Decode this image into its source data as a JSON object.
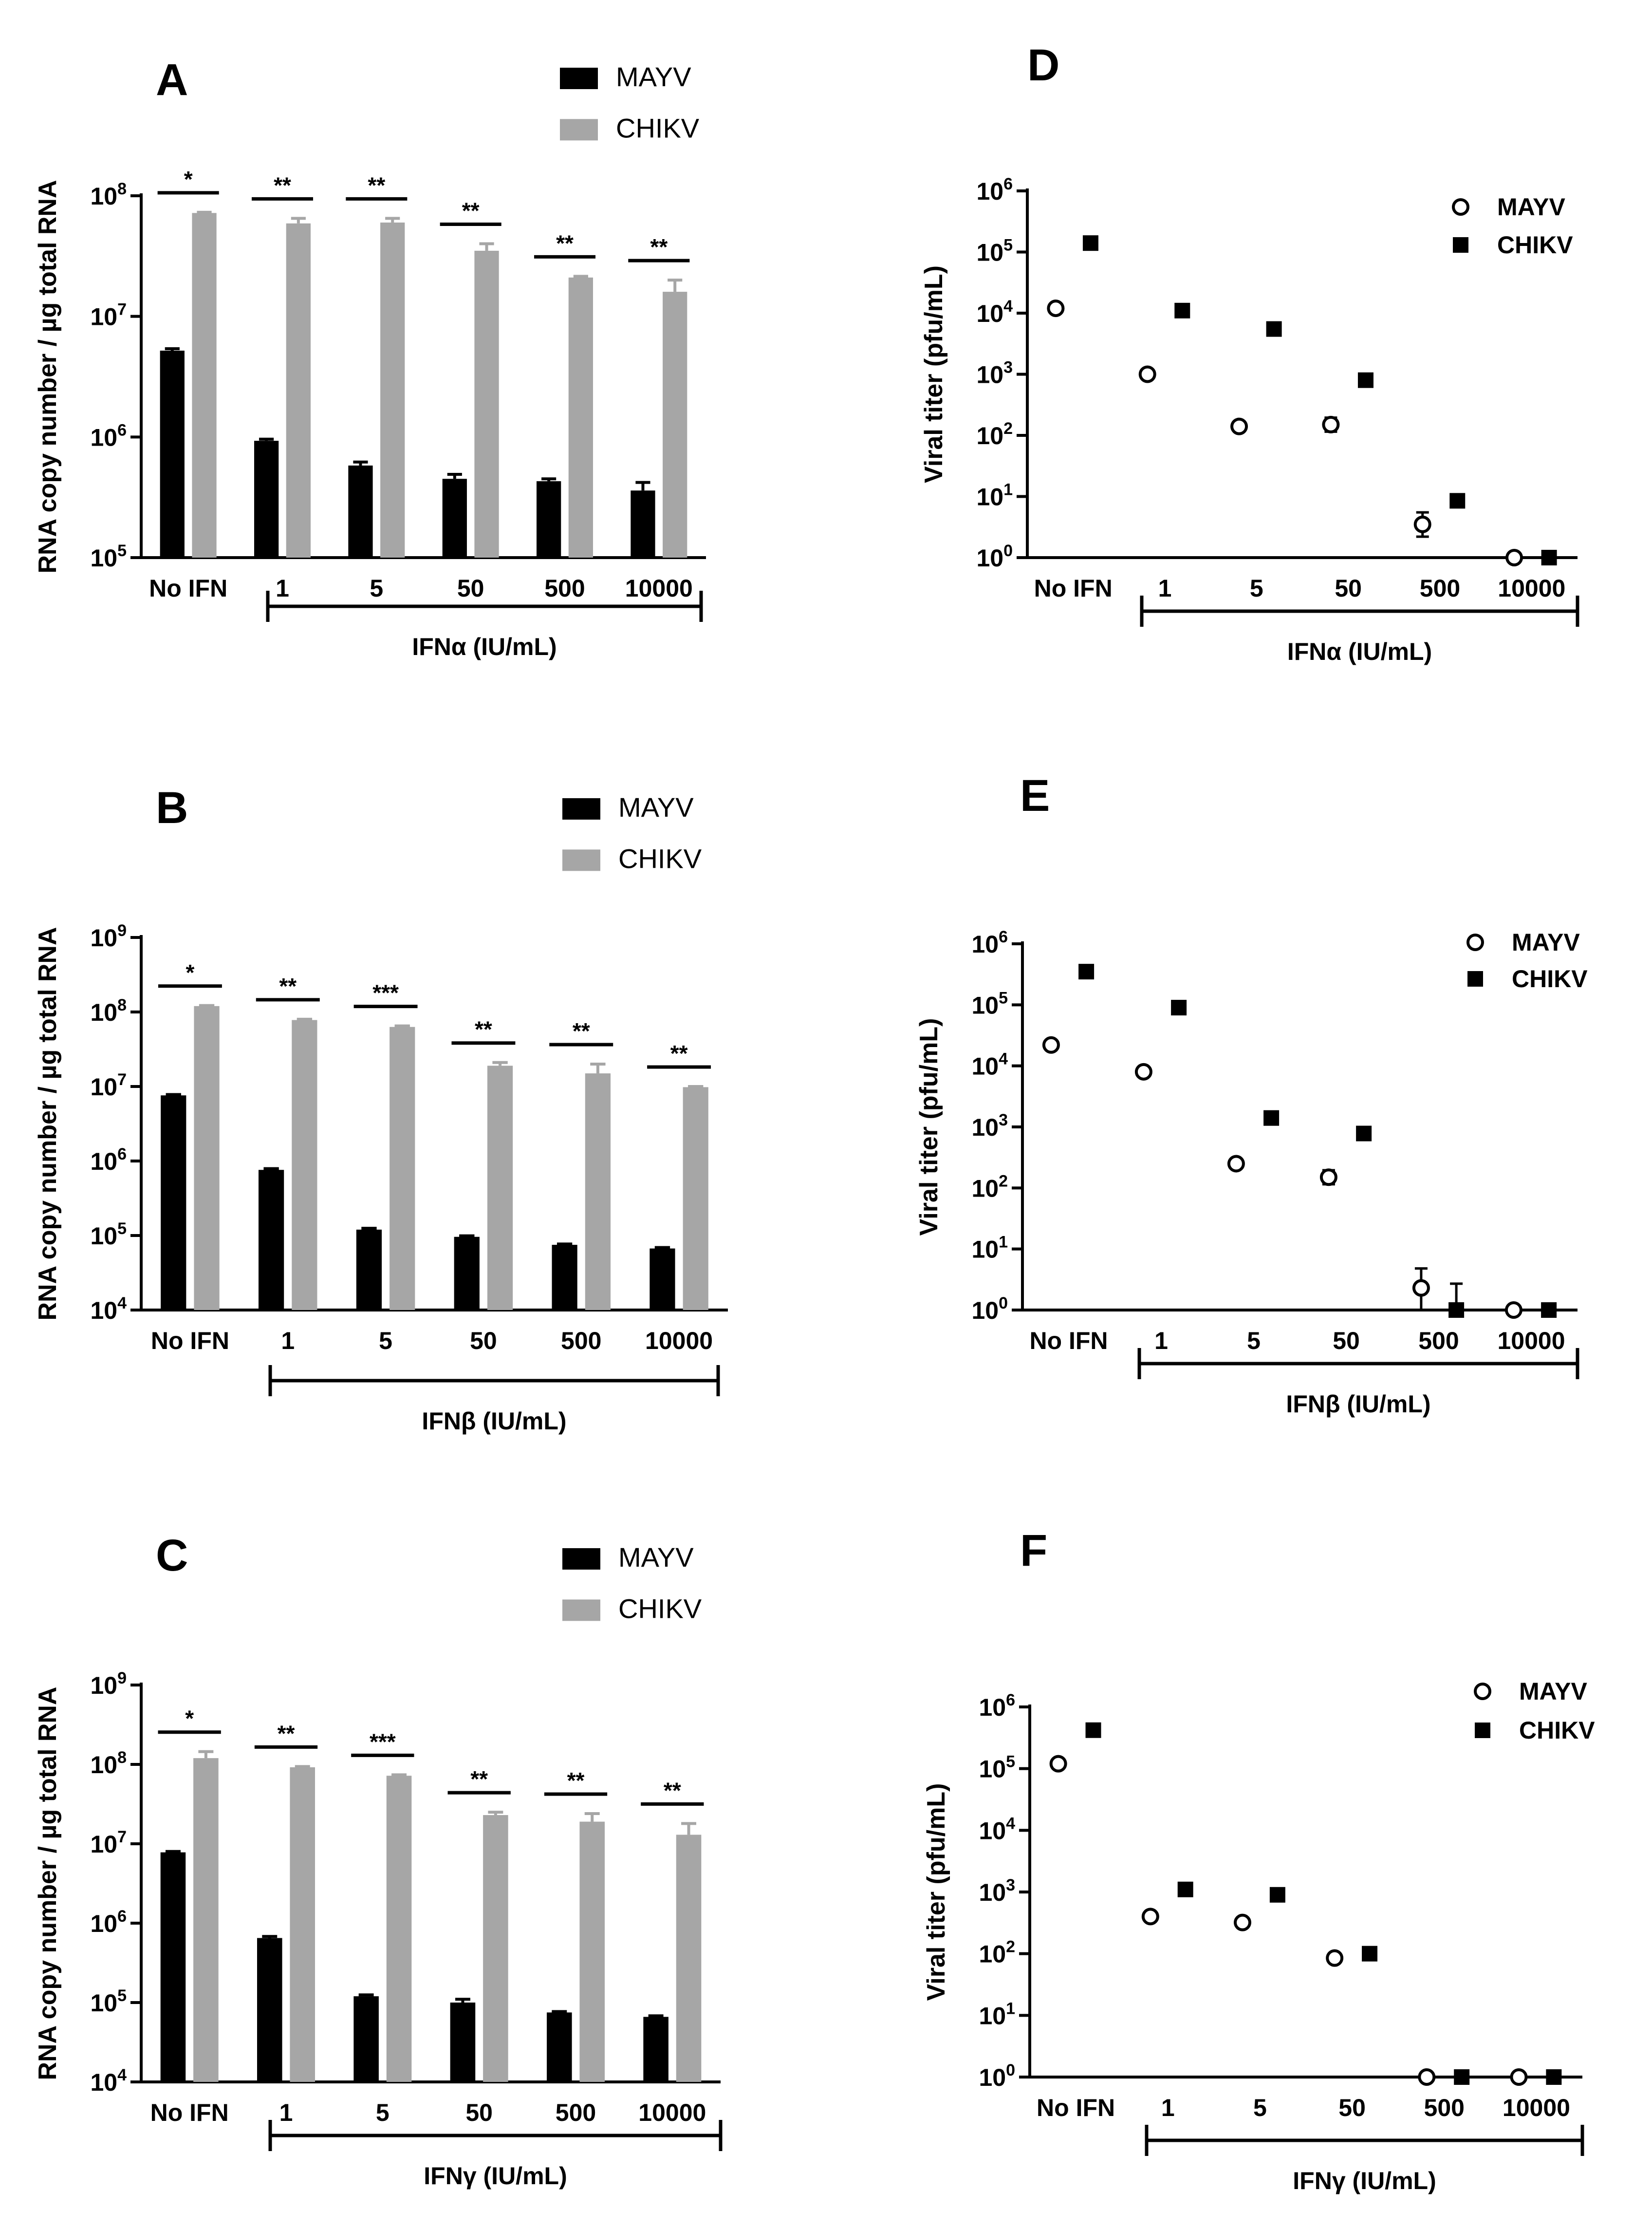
{
  "figure": {
    "categories": [
      "No IFN",
      "1",
      "5",
      "50",
      "500",
      "10000"
    ],
    "series_names": [
      "MAYV",
      "CHIKV"
    ],
    "colors": {
      "mayv_bar": "#000000",
      "chikv_bar": "#a6a6a6",
      "axis": "#000000"
    }
  },
  "chart_data": [
    {
      "panel": "A",
      "type": "bar",
      "log_scale": true,
      "ylabel": "RNA copy number / µg total RNA",
      "xgroup_label": "IFNα (IU/mL)",
      "categories": [
        "No IFN",
        "1",
        "5",
        "50",
        "500",
        "10000"
      ],
      "ylim": [
        100000,
        100000000
      ],
      "yticks": [
        100000,
        1000000,
        10000000,
        100000000
      ],
      "ytick_labels": [
        {
          "b": "10",
          "e": "5"
        },
        {
          "b": "10",
          "e": "6"
        },
        {
          "b": "10",
          "e": "7"
        },
        {
          "b": "10",
          "e": "8"
        }
      ],
      "legend": [
        "MAYV",
        "CHIKV"
      ],
      "series": [
        {
          "name": "MAYV",
          "values": [
            5200000,
            930000,
            580000,
            450000,
            430000,
            360000
          ],
          "errors": [
            5400000,
            960000,
            620000,
            490000,
            450000,
            420000
          ]
        },
        {
          "name": "CHIKV",
          "values": [
            72000000,
            59000000,
            60000000,
            35000000,
            21000000,
            16000000
          ],
          "errors": [
            73000000,
            65000000,
            65000000,
            40000000,
            21500000,
            20000000
          ]
        }
      ],
      "significance": [
        "*",
        "**",
        "**",
        "**",
        "**",
        "**"
      ]
    },
    {
      "panel": "B",
      "type": "bar",
      "log_scale": true,
      "ylabel": "RNA copy number / µg total RNA",
      "xgroup_label": "IFNβ (IU/mL)",
      "categories": [
        "No IFN",
        "1",
        "5",
        "50",
        "500",
        "10000"
      ],
      "ylim": [
        10000,
        1000000000
      ],
      "yticks": [
        10000,
        100000,
        1000000,
        10000000,
        100000000,
        1000000000
      ],
      "ytick_labels": [
        {
          "b": "10",
          "e": "4"
        },
        {
          "b": "10",
          "e": "5"
        },
        {
          "b": "10",
          "e": "6"
        },
        {
          "b": "10",
          "e": "7"
        },
        {
          "b": "10",
          "e": "8"
        },
        {
          "b": "10",
          "e": "9"
        }
      ],
      "legend": [
        "MAYV",
        "CHIKV"
      ],
      "series": [
        {
          "name": "MAYV",
          "values": [
            7600000,
            760000,
            120000,
            96000,
            75000,
            67000
          ],
          "errors": [
            7800000,
            790000,
            125000,
            99000,
            77000,
            69000
          ]
        },
        {
          "name": "CHIKV",
          "values": [
            120000000,
            78000000,
            63000000,
            19000000,
            15000000,
            9800000
          ],
          "errors": [
            122000000,
            80000000,
            65000000,
            21000000,
            20000000,
            10000000
          ]
        }
      ],
      "significance": [
        "*",
        "**",
        "***",
        "**",
        "**",
        "**"
      ]
    },
    {
      "panel": "C",
      "type": "bar",
      "log_scale": true,
      "ylabel": "RNA copy number / µg total RNA",
      "xgroup_label": "IFNγ (IU/mL)",
      "categories": [
        "No IFN",
        "1",
        "5",
        "50",
        "500",
        "10000"
      ],
      "ylim": [
        10000,
        1000000000
      ],
      "yticks": [
        10000,
        100000,
        1000000,
        10000000,
        100000000,
        1000000000
      ],
      "ytick_labels": [
        {
          "b": "10",
          "e": "4"
        },
        {
          "b": "10",
          "e": "5"
        },
        {
          "b": "10",
          "e": "6"
        },
        {
          "b": "10",
          "e": "7"
        },
        {
          "b": "10",
          "e": "8"
        },
        {
          "b": "10",
          "e": "9"
        }
      ],
      "legend": [
        "MAYV",
        "CHIKV"
      ],
      "series": [
        {
          "name": "MAYV",
          "values": [
            7800000,
            650000,
            120000,
            100000,
            75000,
            66000
          ],
          "errors": [
            8000000,
            680000,
            125000,
            110000,
            77000,
            68000
          ]
        },
        {
          "name": "CHIKV",
          "values": [
            120000000,
            92000000,
            72000000,
            23000000,
            19000000,
            13000000
          ],
          "errors": [
            145000000,
            94000000,
            74000000,
            25000000,
            24000000,
            18000000
          ]
        }
      ],
      "significance": [
        "*",
        "**",
        "***",
        "**",
        "**",
        "**"
      ]
    },
    {
      "panel": "D",
      "type": "scatter",
      "log_scale": true,
      "ylabel": "Viral titer (pfu/mL)",
      "xgroup_label": "IFNα (IU/mL)",
      "categories": [
        "No IFN",
        "1",
        "5",
        "50",
        "500",
        "10000"
      ],
      "ylim": [
        1,
        1000000
      ],
      "yticks": [
        1,
        10,
        100,
        1000,
        10000,
        100000,
        1000000
      ],
      "ytick_labels": [
        {
          "b": "10",
          "e": "0"
        },
        {
          "b": "10",
          "e": "1"
        },
        {
          "b": "10",
          "e": "2"
        },
        {
          "b": "10",
          "e": "3"
        },
        {
          "b": "10",
          "e": "4"
        },
        {
          "b": "10",
          "e": "5"
        },
        {
          "b": "10",
          "e": "6"
        }
      ],
      "legend": [
        "MAYV",
        "CHIKV"
      ],
      "series": [
        {
          "name": "MAYV",
          "values": [
            12000,
            1000,
            140,
            150,
            3.5,
            1
          ],
          "err_low": [
            12000,
            1000,
            125,
            115,
            2.2,
            1
          ],
          "err_high": [
            12000,
            1000,
            160,
            195,
            5.5,
            1
          ]
        },
        {
          "name": "CHIKV",
          "values": [
            140000,
            11000,
            5500,
            800,
            8.5,
            1
          ],
          "err_low": [
            140000,
            11000,
            5500,
            800,
            8.5,
            1
          ],
          "err_high": [
            140000,
            11000,
            5500,
            800,
            8.5,
            1
          ]
        }
      ]
    },
    {
      "panel": "E",
      "type": "scatter",
      "log_scale": true,
      "ylabel": "Viral titer (pfu/mL)",
      "xgroup_label": "IFNβ (IU/mL)",
      "categories": [
        "No IFN",
        "1",
        "5",
        "50",
        "500",
        "10000"
      ],
      "ylim": [
        1,
        1000000
      ],
      "yticks": [
        1,
        10,
        100,
        1000,
        10000,
        100000,
        1000000
      ],
      "ytick_labels": [
        {
          "b": "10",
          "e": "0"
        },
        {
          "b": "10",
          "e": "1"
        },
        {
          "b": "10",
          "e": "2"
        },
        {
          "b": "10",
          "e": "3"
        },
        {
          "b": "10",
          "e": "4"
        },
        {
          "b": "10",
          "e": "5"
        },
        {
          "b": "10",
          "e": "6"
        }
      ],
      "legend": [
        "MAYV",
        "CHIKV"
      ],
      "series": [
        {
          "name": "MAYV",
          "values": [
            22000,
            8000,
            250,
            150,
            2.3,
            1
          ],
          "err_low": [
            22000,
            8000,
            250,
            115,
            1,
            1
          ],
          "err_high": [
            22000,
            8000,
            250,
            195,
            4.8,
            1
          ]
        },
        {
          "name": "CHIKV",
          "values": [
            350000,
            90000,
            1400,
            780,
            1,
            1
          ],
          "err_low": [
            350000,
            90000,
            1400,
            780,
            1,
            1
          ],
          "err_high": [
            350000,
            90000,
            1400,
            780,
            2.7,
            1
          ]
        }
      ]
    },
    {
      "panel": "F",
      "type": "scatter",
      "log_scale": true,
      "ylabel": "Viral titer (pfu/mL)",
      "xgroup_label": "IFNγ (IU/mL)",
      "categories": [
        "No IFN",
        "1",
        "5",
        "50",
        "500",
        "10000"
      ],
      "ylim": [
        1,
        1000000
      ],
      "yticks": [
        1,
        10,
        100,
        1000,
        10000,
        100000,
        1000000
      ],
      "ytick_labels": [
        {
          "b": "10",
          "e": "0"
        },
        {
          "b": "10",
          "e": "1"
        },
        {
          "b": "10",
          "e": "2"
        },
        {
          "b": "10",
          "e": "3"
        },
        {
          "b": "10",
          "e": "4"
        },
        {
          "b": "10",
          "e": "5"
        },
        {
          "b": "10",
          "e": "6"
        }
      ],
      "legend": [
        "MAYV",
        "CHIKV"
      ],
      "series": [
        {
          "name": "MAYV",
          "values": [
            120000,
            400,
            320,
            85,
            1,
            1
          ],
          "err_low": [
            120000,
            400,
            320,
            85,
            1,
            1
          ],
          "err_high": [
            120000,
            400,
            320,
            85,
            1,
            1
          ]
        },
        {
          "name": "CHIKV",
          "values": [
            420000,
            1100,
            900,
            100,
            1,
            1
          ],
          "err_low": [
            420000,
            1100,
            900,
            100,
            1,
            1
          ],
          "err_high": [
            420000,
            1100,
            900,
            100,
            1,
            1
          ]
        }
      ]
    }
  ]
}
